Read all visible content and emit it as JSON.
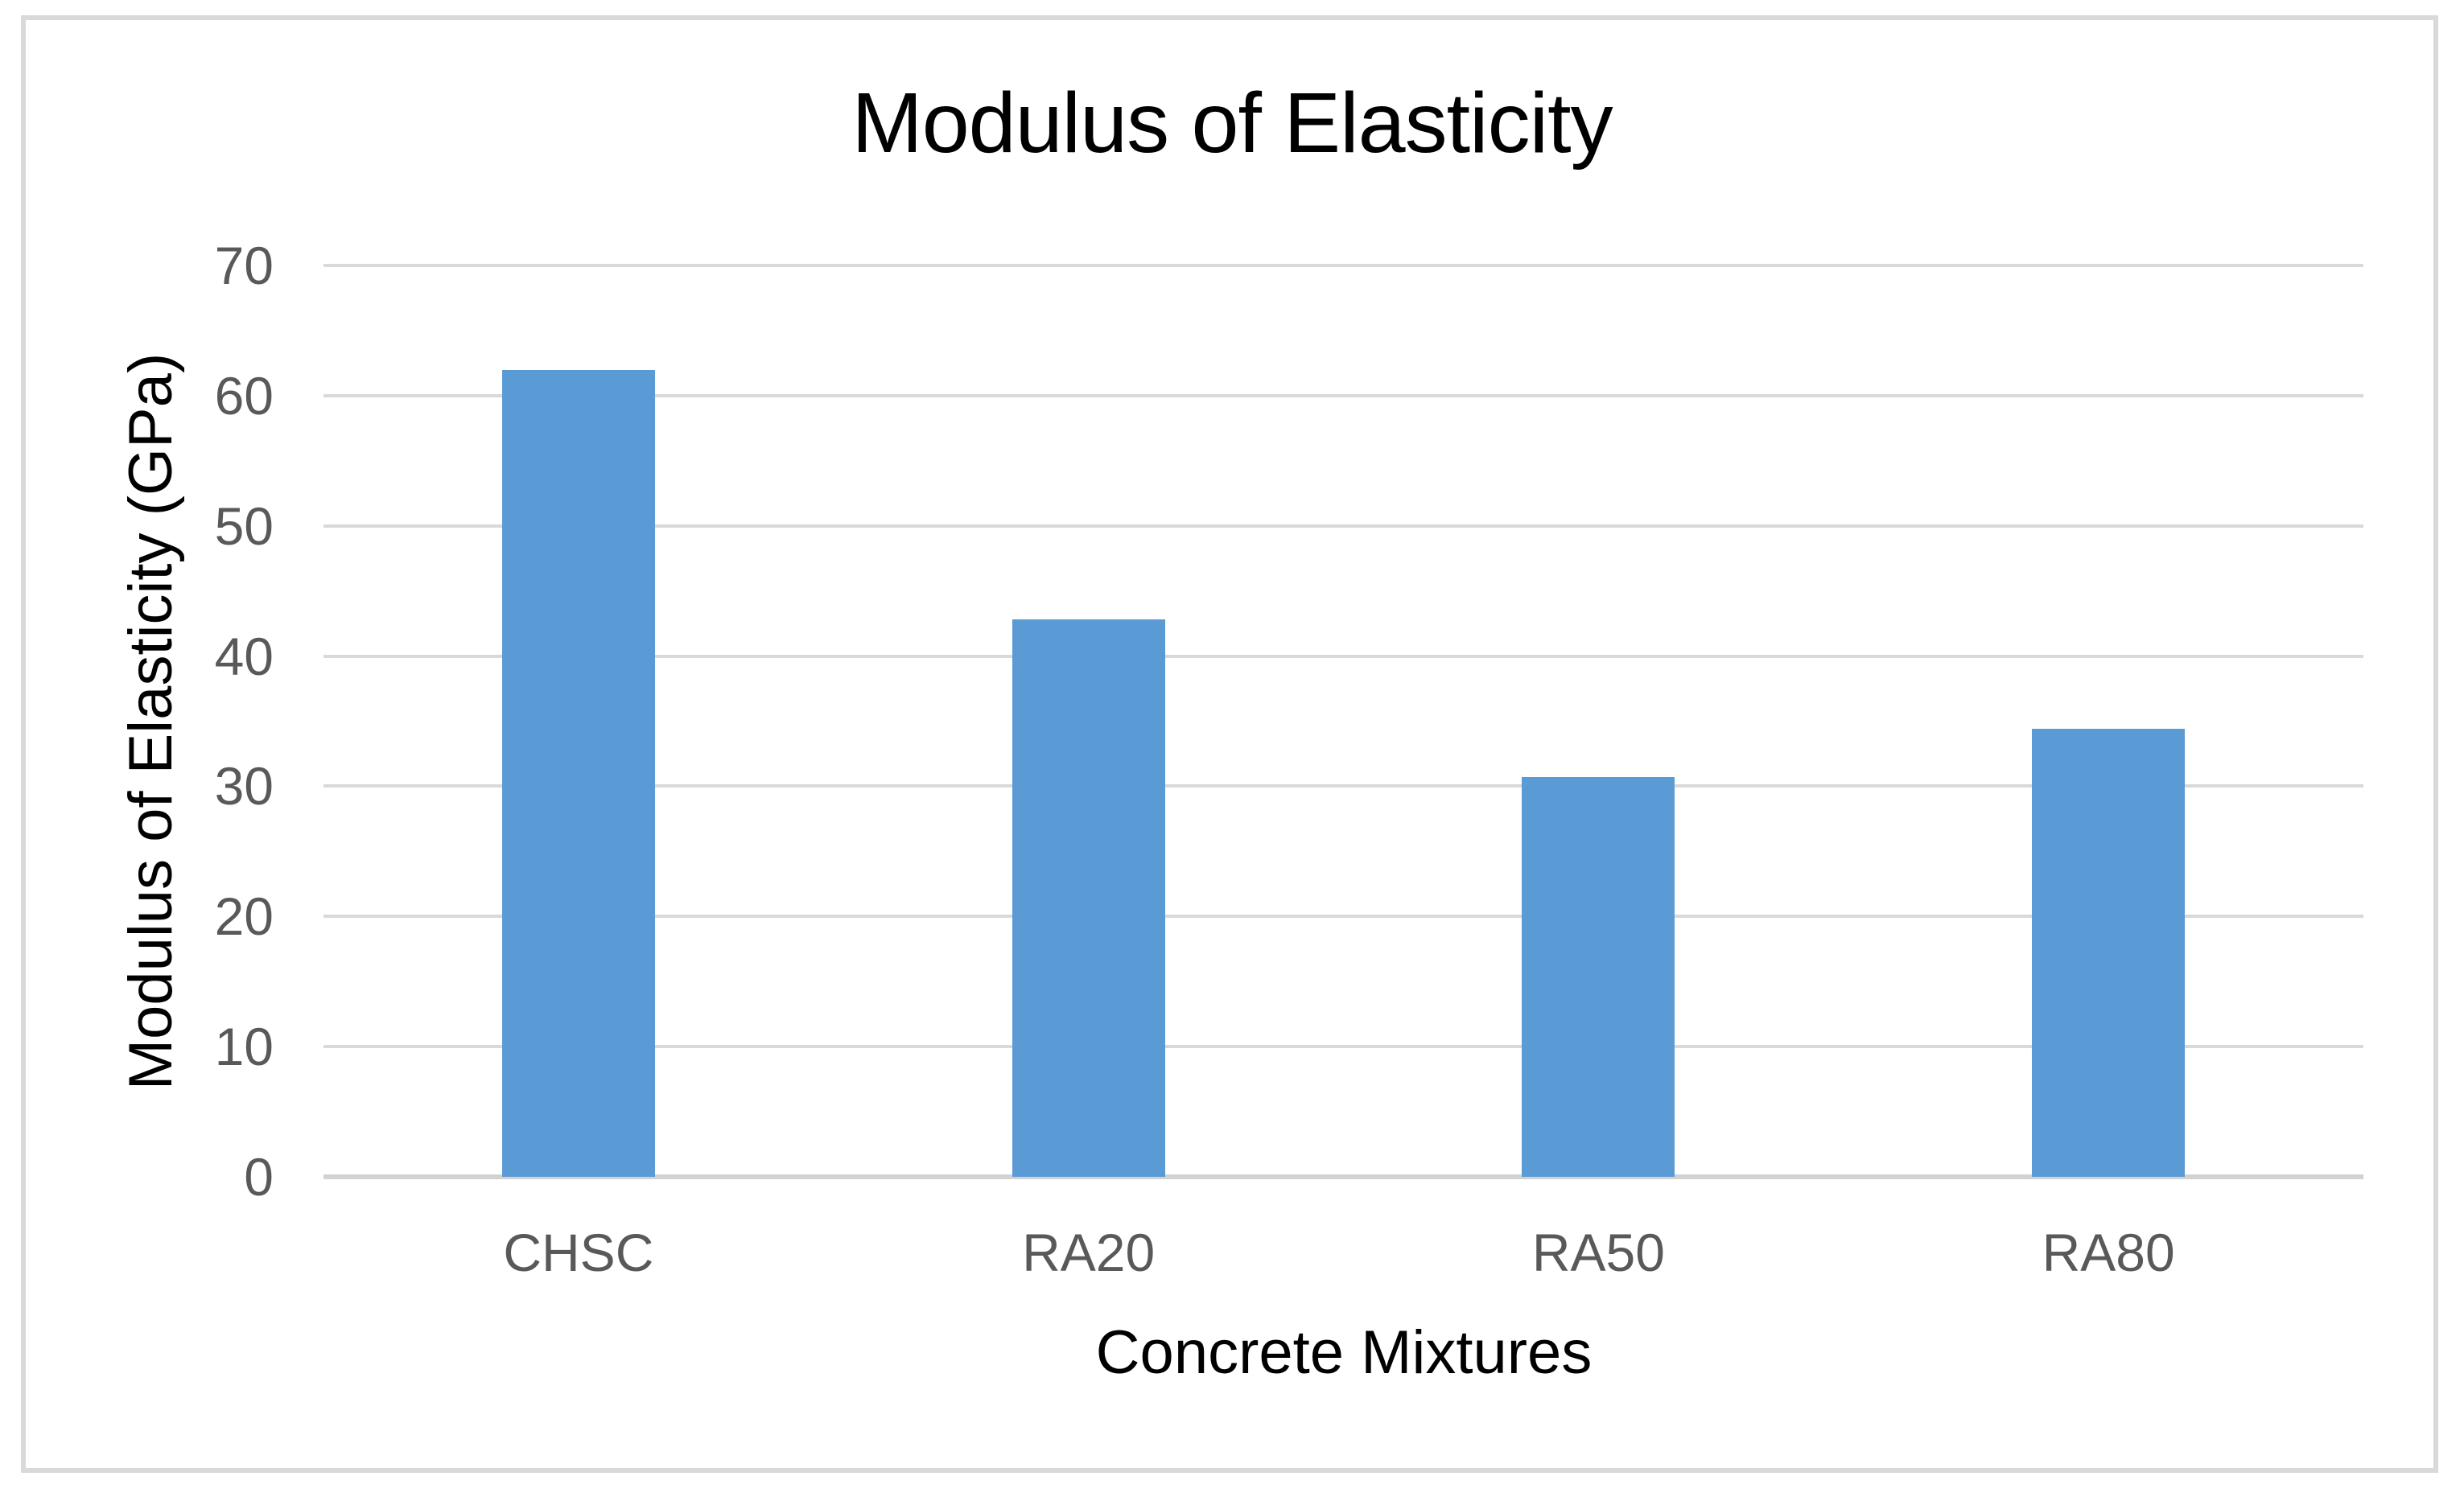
{
  "chart_data": {
    "type": "bar",
    "title": "Modulus of Elasticity",
    "xlabel": "Concrete Mixtures",
    "ylabel": "Modulus of Elasticity (GPa)",
    "categories": [
      "CHSC",
      "RA20",
      "RA50",
      "RA80"
    ],
    "values": [
      62,
      42.8,
      30.7,
      34.4
    ],
    "yticks": [
      70,
      60,
      50,
      40,
      30,
      20,
      10,
      0
    ],
    "ylim": [
      0,
      70
    ],
    "grid": true,
    "legend": false,
    "bar_color": "#5b9bd5"
  },
  "colors": {
    "bar": "#5b9bd5",
    "gridline": "#d9d9d9",
    "zero_axis_line": "#d2d2d2",
    "tick_label": "#595959",
    "title_text": "#000000",
    "frame_border": "#d9d9d9",
    "background": "#ffffff"
  }
}
